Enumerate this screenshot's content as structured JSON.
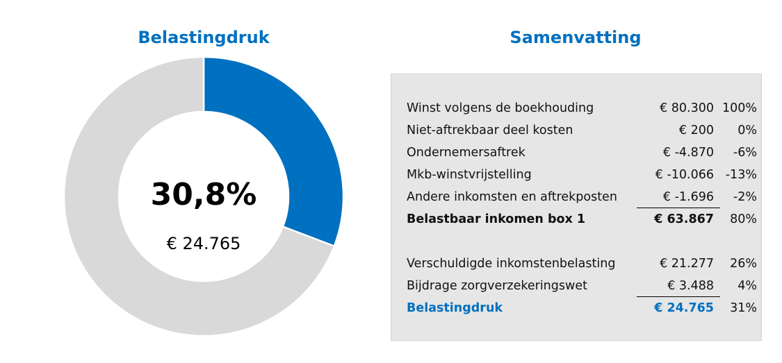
{
  "left_title": "Belastingdruk",
  "right_title": "Samenvatting",
  "chart_data": {
    "type": "pie",
    "style": "donut",
    "slices": [
      {
        "label": "Belastingdruk",
        "value": 30.8,
        "color": "#0070c0"
      },
      {
        "label": "Rest",
        "value": 69.2,
        "color": "#d9d9d9"
      }
    ],
    "center_label": "30,8%",
    "center_sublabel": "€ 24.765"
  },
  "summary": {
    "rows": [
      {
        "label": "Winst volgens de boekhouding",
        "amount": "€ 80.300",
        "pct": "100%"
      },
      {
        "label": "Niet-aftrekbaar deel kosten",
        "amount": "€ 200",
        "pct": "0%"
      },
      {
        "label": "Ondernemersaftrek",
        "amount": "€ -4.870",
        "pct": "-6%"
      },
      {
        "label": "Mkb-winstvrijstelling",
        "amount": "€ -10.066",
        "pct": "-13%"
      },
      {
        "label": "Andere inkomsten en aftrekposten",
        "amount": "€ -1.696",
        "pct": "-2%"
      },
      {
        "label": "Belastbaar inkomen box 1",
        "amount": "€ 63.867",
        "pct": "80%"
      },
      {
        "label": "Verschuldigde inkomstenbelasting",
        "amount": "€ 21.277",
        "pct": "26%"
      },
      {
        "label": "Bijdrage zorgverzekeringswet",
        "amount": "€ 3.488",
        "pct": "4%"
      },
      {
        "label": "Belastingdruk",
        "amount": "€ 24.765",
        "pct": "31%"
      }
    ]
  }
}
